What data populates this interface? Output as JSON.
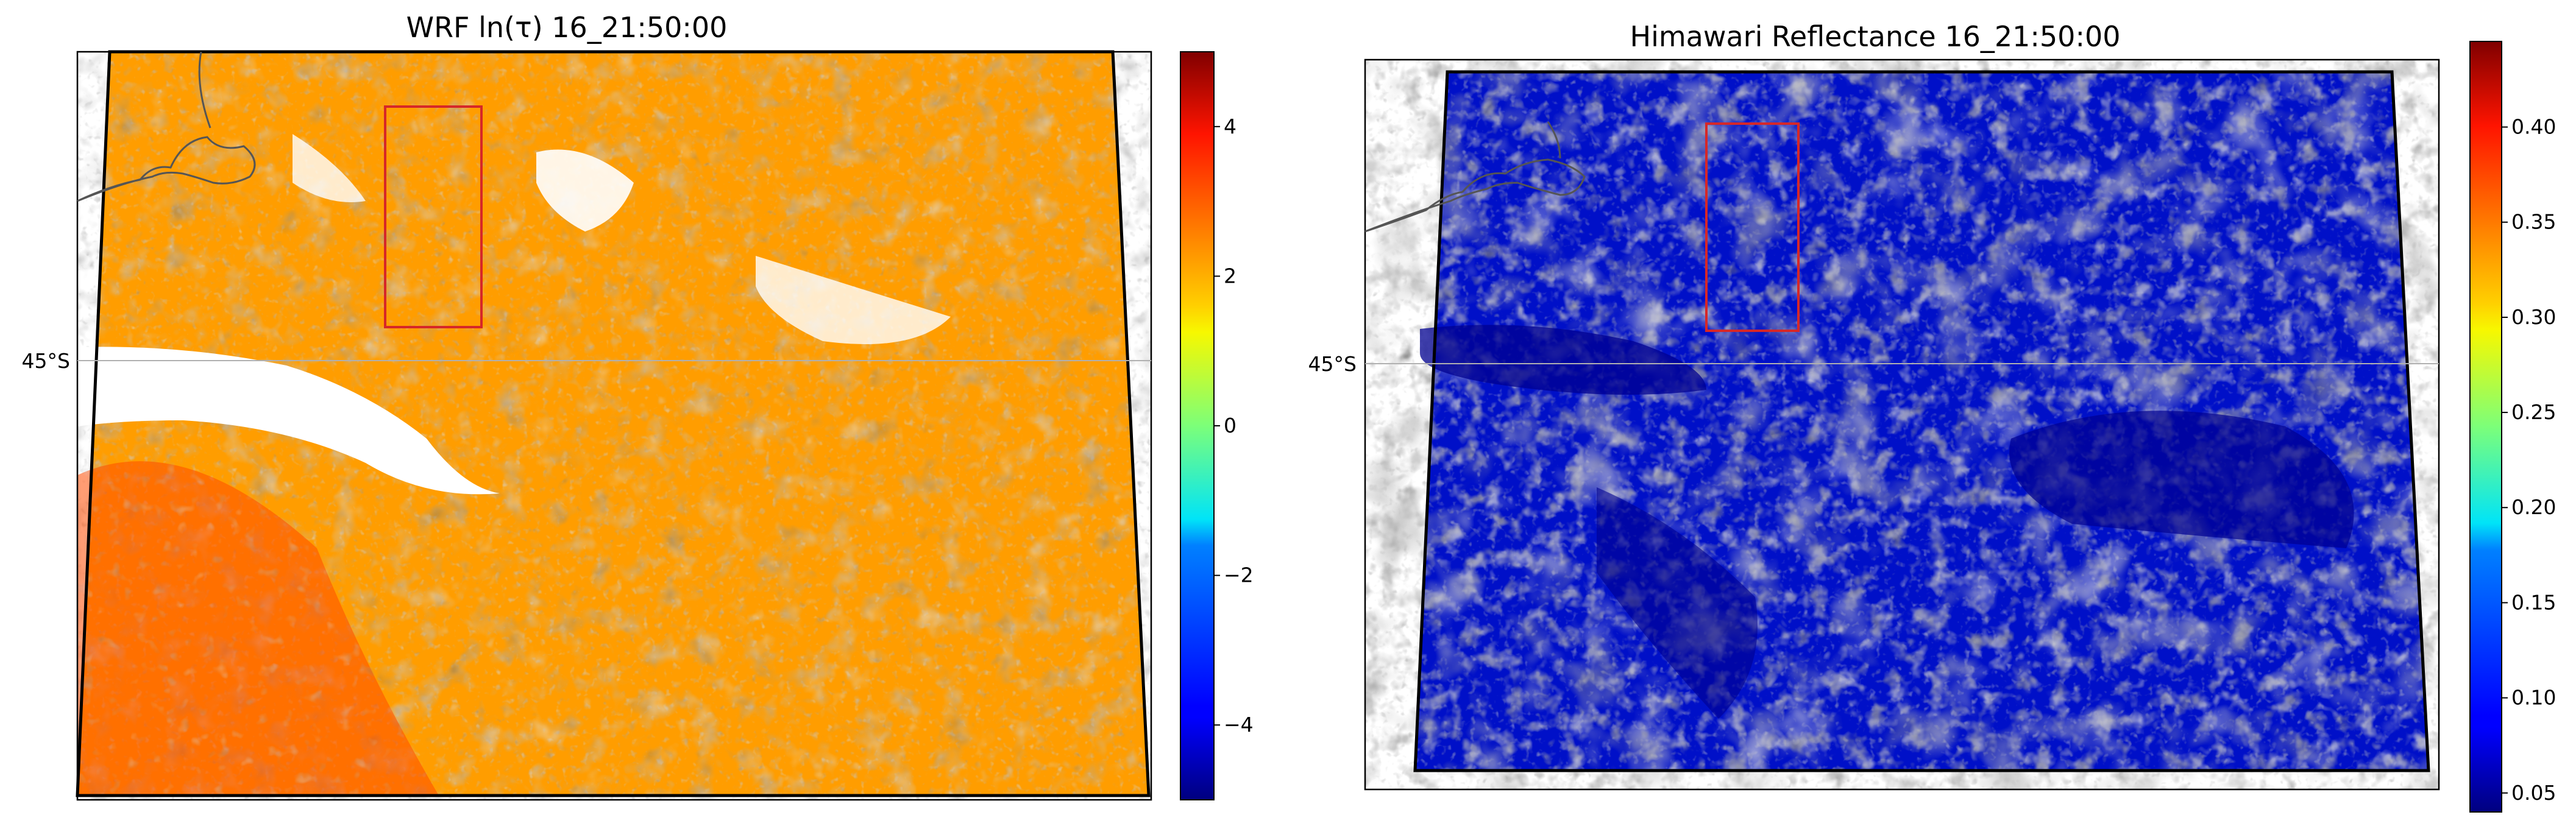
{
  "chart_data": [
    {
      "type": "heatmap",
      "title": "WRF ln(τ) 16_21:50:00",
      "subtitle": "",
      "xlabel": "",
      "ylabel": "",
      "colormap": "jet",
      "clim": [
        -5,
        5
      ],
      "colorbar_ticks": [
        -4,
        -2,
        0,
        2,
        4
      ],
      "colorbar_tick_labels": [
        "−4",
        "−2",
        "0",
        "2",
        "4"
      ],
      "latitude_label": "45°S",
      "map_boundary": "domain-outline",
      "has_subregion_box": true,
      "has_coastline": true,
      "missing_values": "white",
      "note_visible_pattern": "mostly orange/red values (2–4), scattered low values near coastline, cleared channel west of center at 45°S"
    },
    {
      "type": "heatmap",
      "title": "Himawari Reflectance 16_21:50:00",
      "subtitle": "",
      "xlabel": "",
      "ylabel": "",
      "colormap": "jet",
      "clim": [
        0.04,
        0.445
      ],
      "colorbar_ticks": [
        0.05,
        0.1,
        0.15,
        0.2,
        0.25,
        0.3,
        0.35,
        0.4
      ],
      "colorbar_tick_labels": [
        "0.05",
        "0.10",
        "0.15",
        "0.20",
        "0.25",
        "0.30",
        "0.35",
        "0.40"
      ],
      "latitude_label": "45°S",
      "map_boundary": "domain-outline",
      "has_subregion_box": true,
      "has_coastline": true,
      "missing_values": "none",
      "note_visible_pattern": "patchy clouds with reflectance 0.3–0.4 among large low (0.05) areas"
    }
  ],
  "panels": [
    {
      "title": "WRF ln(τ) 16_21:50:00",
      "lat_label": "45°S"
    },
    {
      "title": "Himawari Reflectance 16_21:50:00",
      "lat_label": "45°S"
    }
  ],
  "colors": {
    "boundary": "#000000",
    "subregion_box": "#d62728",
    "coastline": "#555555",
    "gridline": "#b0b0b0",
    "background": "#ffffff"
  }
}
